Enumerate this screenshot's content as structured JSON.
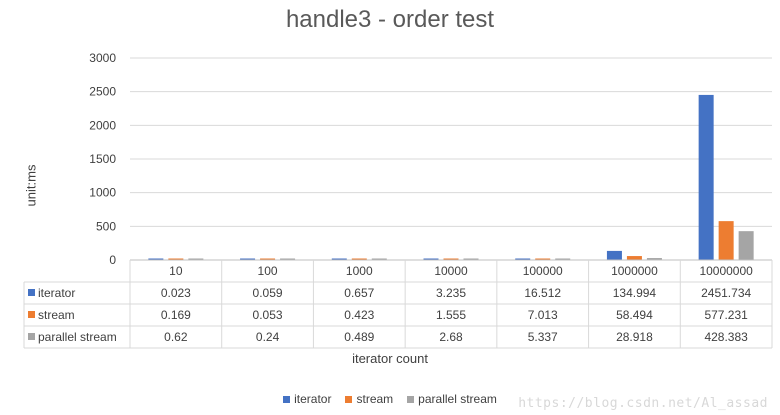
{
  "chart_data": {
    "type": "bar",
    "title": "handle3 - order test",
    "xlabel": "iterator count",
    "ylabel": "unit:ms",
    "ylim": [
      0,
      3000
    ],
    "yticks": [
      0,
      500,
      1000,
      1500,
      2000,
      2500,
      3000
    ],
    "categories": [
      "10",
      "100",
      "1000",
      "10000",
      "100000",
      "1000000",
      "10000000"
    ],
    "series": [
      {
        "name": "iterator",
        "color": "#4472C4",
        "values": [
          0.023,
          0.059,
          0.657,
          3.235,
          16.512,
          134.994,
          2451.734
        ],
        "labels": [
          "0.023",
          "0.059",
          "0.657",
          "3.235",
          "16.512",
          "134.994",
          "2451.734"
        ]
      },
      {
        "name": "stream",
        "color": "#ED7D31",
        "values": [
          0.169,
          0.053,
          0.423,
          1.555,
          7.013,
          58.494,
          577.231
        ],
        "labels": [
          "0.169",
          "0.053",
          "0.423",
          "1.555",
          "7.013",
          "58.494",
          "577.231"
        ]
      },
      {
        "name": "parallel stream",
        "color": "#A5A5A5",
        "values": [
          0.62,
          0.24,
          0.489,
          2.68,
          5.337,
          28.918,
          428.383
        ],
        "labels": [
          "0.62",
          "0.24",
          "0.489",
          "2.68",
          "5.337",
          "28.918",
          "428.383"
        ]
      }
    ],
    "grid": true,
    "legend": "bottom",
    "data_table": true
  },
  "watermark": "https://blog.csdn.net/Al_assad"
}
